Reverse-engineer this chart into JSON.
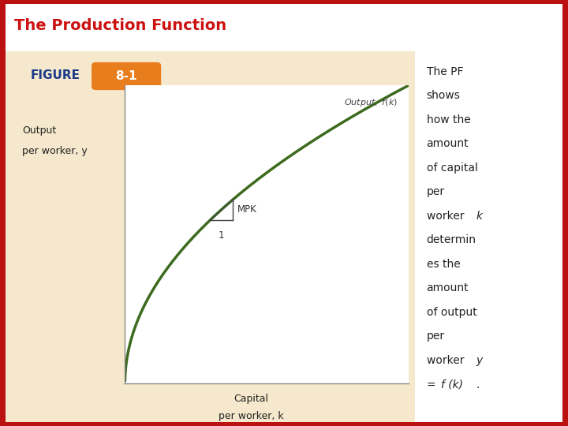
{
  "title": "The Production Function",
  "title_color": "#cc1111",
  "title_fontsize": 14,
  "title_fontweight": "bold",
  "figure_label": "FIGURE",
  "figure_number": "8-1",
  "figure_label_color": "#1a3a8a",
  "figure_number_bg": "#e87d1e",
  "figure_number_color": "#ffffff",
  "figure_label_fontsize": 11,
  "figure_number_fontsize": 11,
  "ylabel_line1": "Output",
  "ylabel_line2": "per worker, y",
  "xlabel_line1": "Capital",
  "xlabel_line2": "per worker, k",
  "curve_label": "Output, f(k)",
  "curve_color": "#3d6b1e",
  "curve_linewidth": 2.5,
  "mpk_label": "MPK",
  "mpk_one_label": "1",
  "background_white": "#ffffff",
  "background_tan": "#f5e8cc",
  "background_light_tan": "#faf3e0",
  "border_color": "#bb1111",
  "border_width": 8,
  "plot_bg": "#ffffff",
  "x_range": [
    0,
    100
  ],
  "y_range": [
    0,
    10
  ],
  "k_mpk": 30,
  "dk_mpk": 8,
  "right_text": [
    [
      "The PF",
      false
    ],
    [
      "shows",
      false
    ],
    [
      "how the",
      false
    ],
    [
      "amount",
      false
    ],
    [
      "of capital",
      false
    ],
    [
      "per",
      false
    ],
    [
      "worker ",
      false
    ],
    [
      "k",
      true
    ],
    [
      "determin",
      false
    ],
    [
      "es the",
      false
    ],
    [
      "amount",
      false
    ],
    [
      "of output",
      false
    ],
    [
      "per",
      false
    ],
    [
      "worker ",
      false
    ],
    [
      "y",
      true
    ],
    [
      "= ",
      false
    ],
    [
      "f (k)",
      true
    ],
    [
      ".",
      false
    ]
  ],
  "right_text_grouped": [
    {
      "text": "The PF",
      "italic": false
    },
    {
      "text": "shows",
      "italic": false
    },
    {
      "text": "how the",
      "italic": false
    },
    {
      "text": "amount",
      "italic": false
    },
    {
      "text": "of capital",
      "italic": false
    },
    {
      "text": "per",
      "italic": false
    },
    {
      "text": "worker k",
      "italic_word": "k"
    },
    {
      "text": "determin",
      "italic": false
    },
    {
      "text": "es the",
      "italic": false
    },
    {
      "text": "amount",
      "italic": false
    },
    {
      "text": "of output",
      "italic": false
    },
    {
      "text": "per",
      "italic": false
    },
    {
      "text": "worker y",
      "italic_word": "y"
    },
    {
      "text": "= f (k).",
      "italic_part": "f (k)"
    }
  ]
}
